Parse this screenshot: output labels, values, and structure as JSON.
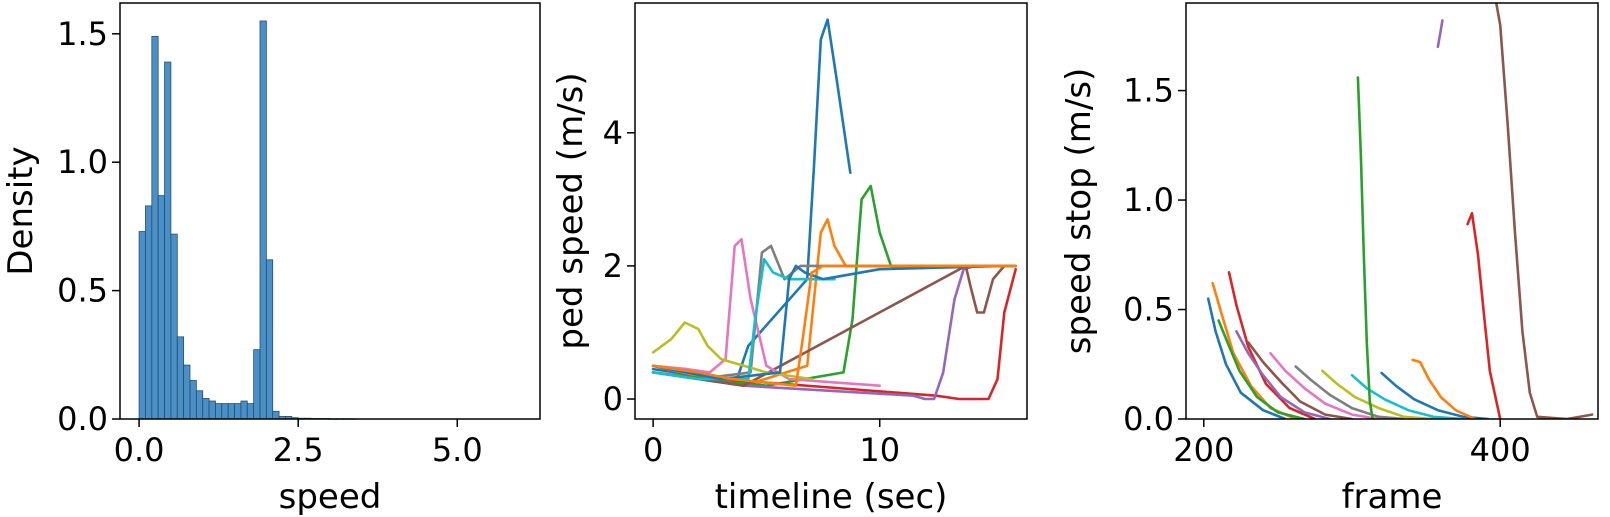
{
  "palette": [
    "#1f77b4",
    "#ff7f0e",
    "#2ca02c",
    "#d62728",
    "#9467bd",
    "#8c564b",
    "#e377c2",
    "#7f7f7f",
    "#bcbd22",
    "#17becf"
  ],
  "chart_data": [
    {
      "type": "bar",
      "subtype": "histogram",
      "xlabel": "speed",
      "ylabel": "Density",
      "xlim": [
        -0.3,
        6.3
      ],
      "ylim": [
        0,
        1.62
      ],
      "xticks": [
        "0.0",
        "2.5",
        "5.0"
      ],
      "yticks": [
        "0.0",
        "0.5",
        "1.0",
        "1.5"
      ],
      "bin_width": 0.1,
      "bin_start": 0.0,
      "values": [
        0.73,
        0.83,
        1.49,
        0.87,
        1.39,
        0.72,
        0.32,
        0.21,
        0.15,
        0.11,
        0.08,
        0.07,
        0.06,
        0.06,
        0.06,
        0.06,
        0.07,
        0.06,
        0.27,
        1.55,
        0.62,
        0.03,
        0.01,
        0.01,
        0.005,
        0.003,
        0.003,
        0.002,
        0.002,
        0.002,
        0.001,
        0.001,
        0.001,
        0.001
      ],
      "grid": false
    },
    {
      "type": "line",
      "xlabel": "timeline (sec)",
      "ylabel": "ped speed (m/s)",
      "xlim": [
        -0.8,
        16.5
      ],
      "ylim": [
        -0.3,
        5.95
      ],
      "xticks": [
        "0",
        "10"
      ],
      "yticks": [
        "0",
        "2",
        "4"
      ],
      "grid": false,
      "series": [
        {
          "x": [
            0,
            2,
            3.7,
            4.2,
            6.8,
            7.1,
            7.4,
            7.7,
            8.1,
            8.7
          ],
          "y": [
            0.45,
            0.35,
            0.3,
            0.8,
            1.8,
            3.5,
            5.4,
            5.7,
            4.8,
            3.4
          ]
        },
        {
          "x": [
            0,
            4,
            6.8,
            7.1,
            7.4,
            7.7,
            8.0,
            8.5,
            9.5,
            12
          ],
          "y": [
            0.5,
            0.2,
            0.5,
            1.5,
            2.5,
            2.7,
            2.3,
            2.0,
            2.0,
            2.0
          ]
        },
        {
          "x": [
            0,
            5,
            8.4,
            8.8,
            9.2,
            9.6,
            10.0,
            10.5,
            12,
            16
          ],
          "y": [
            0.4,
            0.2,
            0.4,
            1.2,
            3.0,
            3.2,
            2.5,
            2.0,
            2.0,
            2.0
          ]
        },
        {
          "x": [
            0,
            3,
            12.5,
            13.5,
            14,
            14.5,
            14.8,
            15.2,
            15.5,
            16
          ],
          "y": [
            0.5,
            0.3,
            0.05,
            0.0,
            0.0,
            0.0,
            0.0,
            0.3,
            1.3,
            1.95
          ]
        },
        {
          "x": [
            0,
            4,
            11.5,
            12,
            12.4,
            12.8,
            13.3,
            13.7,
            14.2,
            15.5
          ],
          "y": [
            0.4,
            0.2,
            0.05,
            0.0,
            0.0,
            0.4,
            1.5,
            1.95,
            2.0,
            2.0
          ]
        },
        {
          "x": [
            0,
            4,
            13.8,
            14.0,
            14.3,
            14.6,
            15.0,
            15.5,
            16
          ],
          "y": [
            0.4,
            0.2,
            2.0,
            1.7,
            1.3,
            1.3,
            1.8,
            2.0,
            2.0
          ]
        },
        {
          "x": [
            0,
            1.5,
            2.5,
            3.2,
            3.6,
            3.9,
            4.3,
            5,
            6,
            8,
            10
          ],
          "y": [
            0.5,
            0.45,
            0.4,
            0.6,
            2.3,
            2.4,
            1.5,
            0.5,
            0.3,
            0.25,
            0.2
          ]
        },
        {
          "x": [
            0,
            1,
            2,
            4.3,
            4.8,
            5.2,
            5.8,
            6.5,
            8,
            10
          ],
          "y": [
            0.4,
            0.35,
            0.3,
            0.4,
            2.2,
            2.3,
            1.8,
            2.0,
            2.0,
            2.0
          ]
        },
        {
          "x": [
            0,
            0.8,
            1.4,
            2.0,
            2.4,
            3.0,
            5,
            7
          ],
          "y": [
            0.7,
            0.9,
            1.15,
            1.05,
            0.8,
            0.6,
            0.4,
            0.3
          ]
        },
        {
          "x": [
            0,
            2,
            4.2,
            4.5,
            4.9,
            5.3,
            6,
            8
          ],
          "y": [
            0.4,
            0.3,
            0.3,
            1.2,
            2.1,
            1.9,
            1.8,
            1.8
          ]
        },
        {
          "x": [
            0,
            3,
            5.6,
            6.0,
            6.3,
            6.7,
            7.5,
            10,
            15.5
          ],
          "y": [
            0.5,
            0.3,
            0.4,
            1.8,
            2.0,
            1.9,
            1.8,
            1.95,
            2.0
          ]
        },
        {
          "x": [
            0,
            2,
            3.5,
            6.3,
            6.6,
            7.0,
            7.5,
            10,
            16
          ],
          "y": [
            0.5,
            0.4,
            0.3,
            0.2,
            0.9,
            1.9,
            2.0,
            2.0,
            2.0
          ]
        }
      ]
    },
    {
      "type": "line",
      "xlabel": "frame",
      "ylabel": "speed stop (m/s)",
      "xlim": [
        188,
        466
      ],
      "ylim": [
        0,
        1.9
      ],
      "xticks": [
        "200",
        "400"
      ],
      "yticks": [
        "0.0",
        "0.5",
        "1.0",
        "1.5"
      ],
      "grid": false,
      "series": [
        {
          "x": [
            203,
            208,
            215,
            225,
            240,
            255
          ],
          "y": [
            0.55,
            0.4,
            0.25,
            0.12,
            0.04,
            0.0
          ]
        },
        {
          "x": [
            206,
            212,
            220,
            232,
            245,
            262
          ],
          "y": [
            0.62,
            0.48,
            0.3,
            0.15,
            0.05,
            0.0
          ]
        },
        {
          "x": [
            210,
            216,
            224,
            236,
            250,
            268
          ],
          "y": [
            0.45,
            0.35,
            0.22,
            0.1,
            0.03,
            0.0
          ]
        },
        {
          "x": [
            217,
            222,
            230,
            242,
            258,
            275
          ],
          "y": [
            0.67,
            0.52,
            0.33,
            0.16,
            0.05,
            0.0
          ]
        },
        {
          "x": [
            222,
            230,
            240,
            252,
            268,
            285
          ],
          "y": [
            0.4,
            0.3,
            0.2,
            0.1,
            0.03,
            0.0
          ]
        },
        {
          "x": [
            230,
            240,
            252,
            265,
            282,
            300
          ],
          "y": [
            0.35,
            0.26,
            0.17,
            0.08,
            0.02,
            0.0
          ]
        },
        {
          "x": [
            245,
            255,
            268,
            282,
            300,
            318
          ],
          "y": [
            0.3,
            0.22,
            0.14,
            0.07,
            0.02,
            0.0
          ]
        },
        {
          "x": [
            262,
            272,
            285,
            300,
            318,
            335
          ],
          "y": [
            0.24,
            0.18,
            0.11,
            0.05,
            0.01,
            0.0
          ]
        },
        {
          "x": [
            280,
            290,
            302,
            318,
            335,
            355
          ],
          "y": [
            0.22,
            0.16,
            0.1,
            0.05,
            0.01,
            0.0
          ]
        },
        {
          "x": [
            300,
            310,
            322,
            338,
            355,
            375
          ],
          "y": [
            0.2,
            0.14,
            0.09,
            0.04,
            0.01,
            0.0
          ]
        },
        {
          "x": [
            320,
            330,
            342,
            358,
            375,
            392
          ],
          "y": [
            0.21,
            0.15,
            0.09,
            0.04,
            0.01,
            0.0
          ]
        },
        {
          "x": [
            341,
            346,
            352,
            360,
            370,
            383
          ],
          "y": [
            0.27,
            0.26,
            0.18,
            0.1,
            0.04,
            0.0
          ]
        },
        {
          "x": [
            304,
            306,
            308,
            310,
            312,
            314
          ],
          "y": [
            1.56,
            1.2,
            0.75,
            0.35,
            0.08,
            0.0
          ]
        },
        {
          "x": [
            378,
            381,
            385,
            389,
            393,
            400
          ],
          "y": [
            0.89,
            0.94,
            0.75,
            0.48,
            0.22,
            0.0
          ]
        },
        {
          "x": [
            358,
            359.5,
            361
          ],
          "y": [
            1.7,
            1.76,
            1.82
          ]
        },
        {
          "x": [
            396,
            400,
            405,
            410,
            415,
            420,
            425,
            445,
            462
          ],
          "y": [
            1.95,
            1.8,
            1.35,
            0.85,
            0.4,
            0.12,
            0.01,
            0.0,
            0.02
          ]
        }
      ]
    }
  ]
}
